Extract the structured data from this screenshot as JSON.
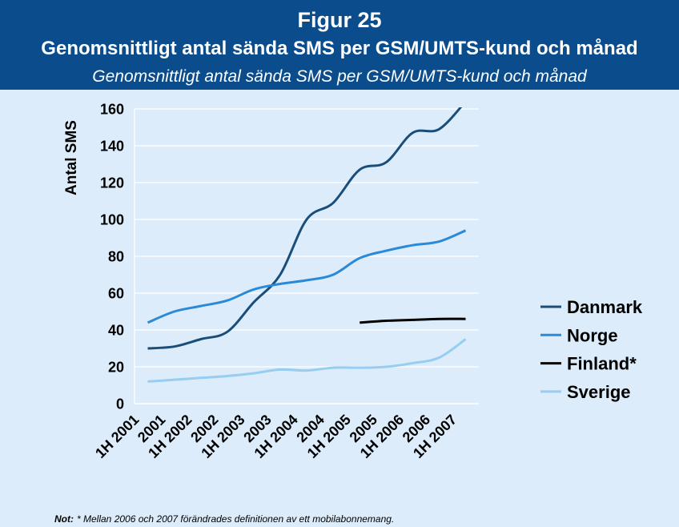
{
  "header": {
    "figure_label": "Figur 25"
  },
  "colors": {
    "header_background": "#0a4c8c",
    "header_text": "#ffffff",
    "page_background": "#dcecfa",
    "gridlines": "#ffffff"
  },
  "chart_data": {
    "type": "line",
    "title": "Genomsnittligt antal sända SMS per GSM/UMTS-kund och månad",
    "subtitle": "Genomsnittligt antal sända SMS per GSM/UMTS-kund och månad",
    "xlabel": "",
    "ylabel": "Antal SMS",
    "ylim": [
      0,
      160
    ],
    "yticks": [
      0,
      20,
      40,
      60,
      80,
      100,
      120,
      140,
      160
    ],
    "categories": [
      "1H 2001",
      "2001",
      "1H 2002",
      "2002",
      "1H 2003",
      "2003",
      "1H 2004",
      "2004",
      "1H 2005",
      "2005",
      "1H 2006",
      "2006",
      "1H 2007"
    ],
    "grid": true,
    "smoothed": true,
    "legend_position": "right",
    "series": [
      {
        "name": "Danmark",
        "color": "#1a4e7a",
        "values": [
          30,
          31,
          35,
          39,
          55,
          70,
          100,
          109,
          127,
          131,
          147,
          149,
          164
        ]
      },
      {
        "name": "Norge",
        "color": "#2a8ad8",
        "values": [
          44,
          50,
          53,
          56,
          62,
          65,
          67,
          70,
          79,
          83,
          86,
          88,
          94
        ]
      },
      {
        "name": "Finland*",
        "color": "#000000",
        "values": [
          null,
          null,
          null,
          null,
          null,
          null,
          null,
          null,
          44,
          45,
          45.5,
          46,
          46
        ]
      },
      {
        "name": "Sverige",
        "color": "#96cdf0",
        "values": [
          12,
          13,
          14,
          15,
          16.5,
          18.5,
          18,
          19.5,
          19.5,
          20,
          22,
          25,
          35
        ]
      }
    ]
  },
  "footnote": {
    "label": "Not:",
    "text": "* Mellan 2006 och 2007 förändrades definitionen av ett mobilabonnemang."
  }
}
